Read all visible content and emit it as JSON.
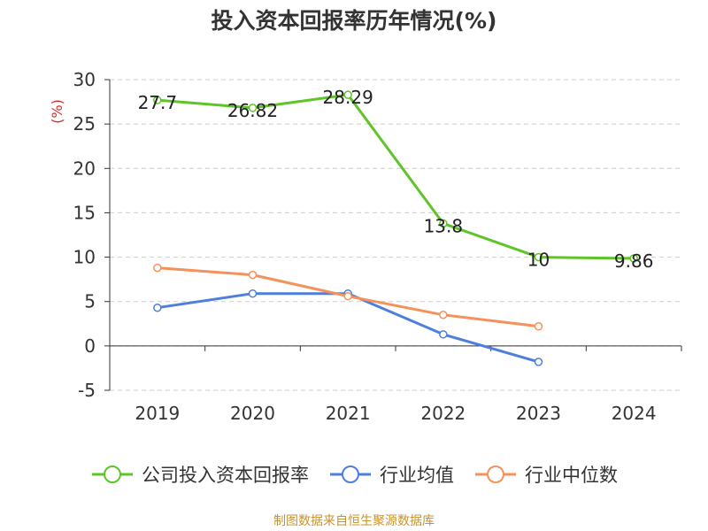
{
  "chart_data": {
    "type": "line",
    "title": "投入资本回报率历年情况(%)",
    "ylabel": "(%)",
    "xlabel": "",
    "categories": [
      "2019",
      "2020",
      "2021",
      "2022",
      "2023",
      "2024"
    ],
    "ylim": [
      -5,
      30
    ],
    "yticks": [
      -5,
      0,
      5,
      10,
      15,
      20,
      25,
      30
    ],
    "grid": true,
    "legend_position": "bottom",
    "series": [
      {
        "name": "公司投入资本回报率",
        "color": "#5ec427",
        "values": [
          27.7,
          26.82,
          28.29,
          13.8,
          10,
          9.86
        ],
        "labels": [
          "27.7",
          "26.82",
          "28.29",
          "13.8",
          "10",
          "9.86"
        ]
      },
      {
        "name": "行业均值",
        "color": "#4f7fdc",
        "values": [
          4.3,
          5.9,
          5.9,
          1.3,
          -1.8,
          null
        ]
      },
      {
        "name": "行业中位数",
        "color": "#f5915a",
        "values": [
          8.8,
          8.0,
          5.6,
          3.5,
          2.2,
          null
        ]
      }
    ]
  },
  "source": "制图数据来自恒生聚源数据库"
}
